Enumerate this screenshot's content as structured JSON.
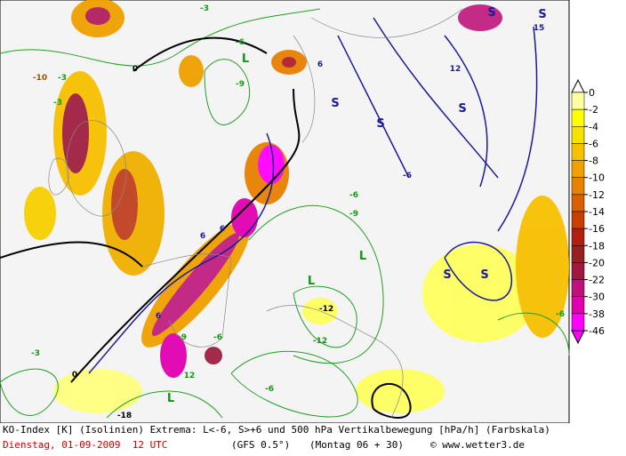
{
  "map": {
    "labels": [
      "-3",
      "-6",
      "-9",
      "L",
      "0",
      "-10",
      "-3",
      "6",
      "S",
      "S",
      "S",
      "12",
      "-6",
      "-9",
      "6",
      "S",
      "S",
      "-6",
      "-3",
      "L",
      "-12",
      "L",
      "6",
      "-9",
      "-6",
      "-12",
      "12",
      "-6",
      "-18",
      "L",
      "S",
      "-6",
      "6",
      "0",
      "-3",
      "15",
      "S"
    ],
    "colorbar": {
      "labels": [
        0,
        -2,
        -4,
        -6,
        -8,
        -10,
        -12,
        -14,
        -16,
        -18,
        -20,
        -22,
        -30,
        -38,
        -46
      ]
    }
  },
  "footer": {
    "line1": "KO-Index [K] (Isolinien) Extrema: L<-6, S>+6 und 500 hPa Vertikalbewegung [hPa/h] (Farbskala)",
    "date": "Dienstag, 01-09-2009  12 UTC",
    "model": "(GFS 0.5°)",
    "run": "(Montag 06 + 30)",
    "copyright": "© www.wetter3.de"
  }
}
